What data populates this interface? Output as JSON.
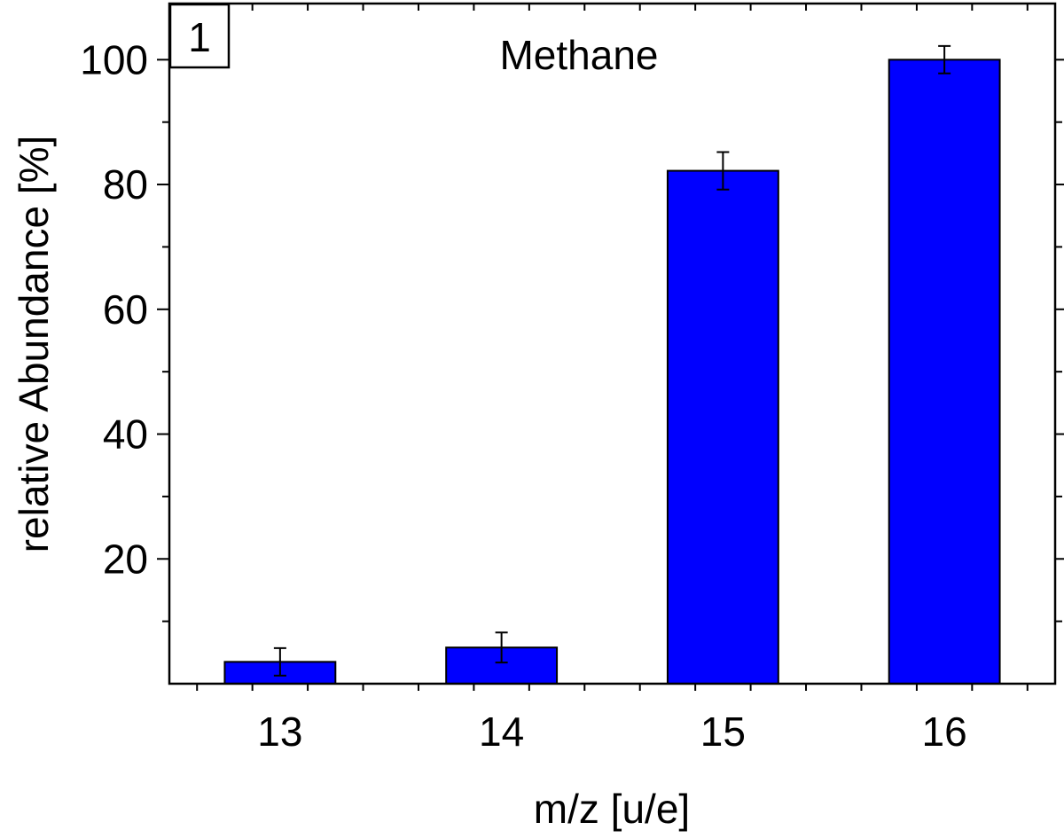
{
  "chart_data": {
    "type": "bar",
    "title": "Methane",
    "panel_label": "1",
    "xlabel": "m/z [u/e]",
    "ylabel": "relative Abundance [%]",
    "categories": [
      "13",
      "14",
      "15",
      "16"
    ],
    "x": [
      13,
      14,
      15,
      16
    ],
    "values": [
      3.5,
      5.8,
      82.2,
      100
    ],
    "errors": [
      2.2,
      2.4,
      3.0,
      2.2
    ],
    "xlim": [
      12.5,
      16.5
    ],
    "ylim": [
      0,
      109
    ],
    "yticks": [
      20,
      40,
      60,
      80,
      100
    ],
    "bar_color": "#0000ff",
    "grid": false
  }
}
